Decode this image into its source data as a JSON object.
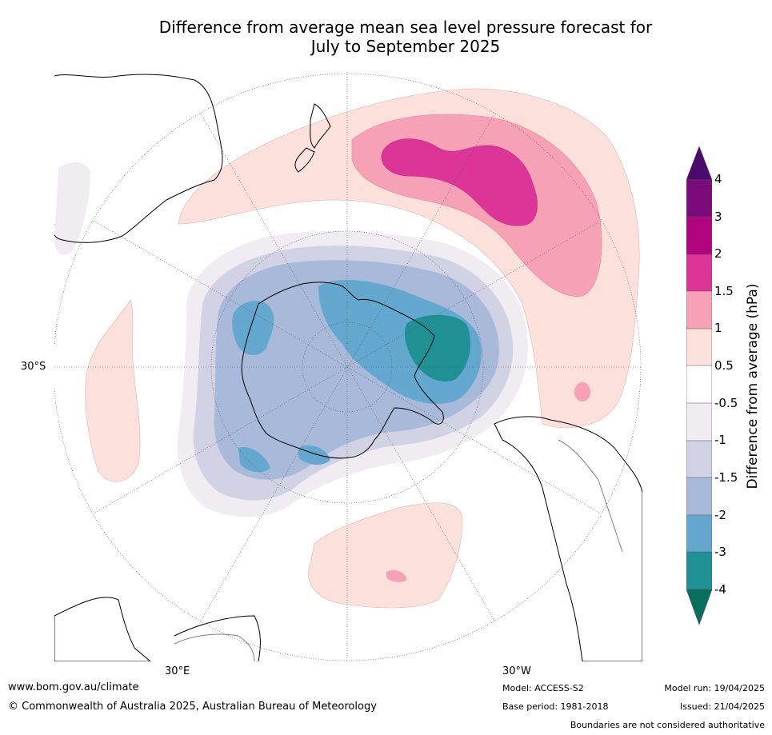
{
  "title": {
    "line1": "Difference from average mean sea level pressure forecast for",
    "line2": "July to September 2025"
  },
  "map": {
    "lat_label": "30°S",
    "lon_labels": {
      "east": "30°E",
      "west": "30°W"
    }
  },
  "colorbar": {
    "title": "Difference from average (hPa)",
    "ticks": [
      "4",
      "3",
      "2",
      "1.5",
      "1",
      "0.5",
      "-0.5",
      "-1",
      "-1.5",
      "-2",
      "-3",
      "-4"
    ],
    "colors": {
      "over": "#4a0a6e",
      "3_4": "#7b0a7a",
      "2_3": "#b1057f",
      "1.5_2": "#dd3597",
      "1_1.5": "#f7a1b6",
      "0.5_1": "#fce0dc",
      "neutral": "#ffffff",
      "m1_m0.5": "#f1ebf2",
      "m1.5_m1": "#d1d3e5",
      "m2_m1.5": "#a8b9d9",
      "m3_m2": "#65a8cf",
      "m4_m3": "#1f9093",
      "under": "#066f5e"
    }
  },
  "footer": {
    "website": "www.bom.gov.au/climate",
    "copyright": "© Commonwealth of Australia 2025, Australian Bureau of Meteorology",
    "model": "Model: ACCESS-S2",
    "base_period": "Base period: 1981-2018",
    "model_run": "Model run: 19/04/2025",
    "issued": "Issued: 21/04/2025",
    "disclaimer": "Boundaries are not considered authoritative"
  }
}
